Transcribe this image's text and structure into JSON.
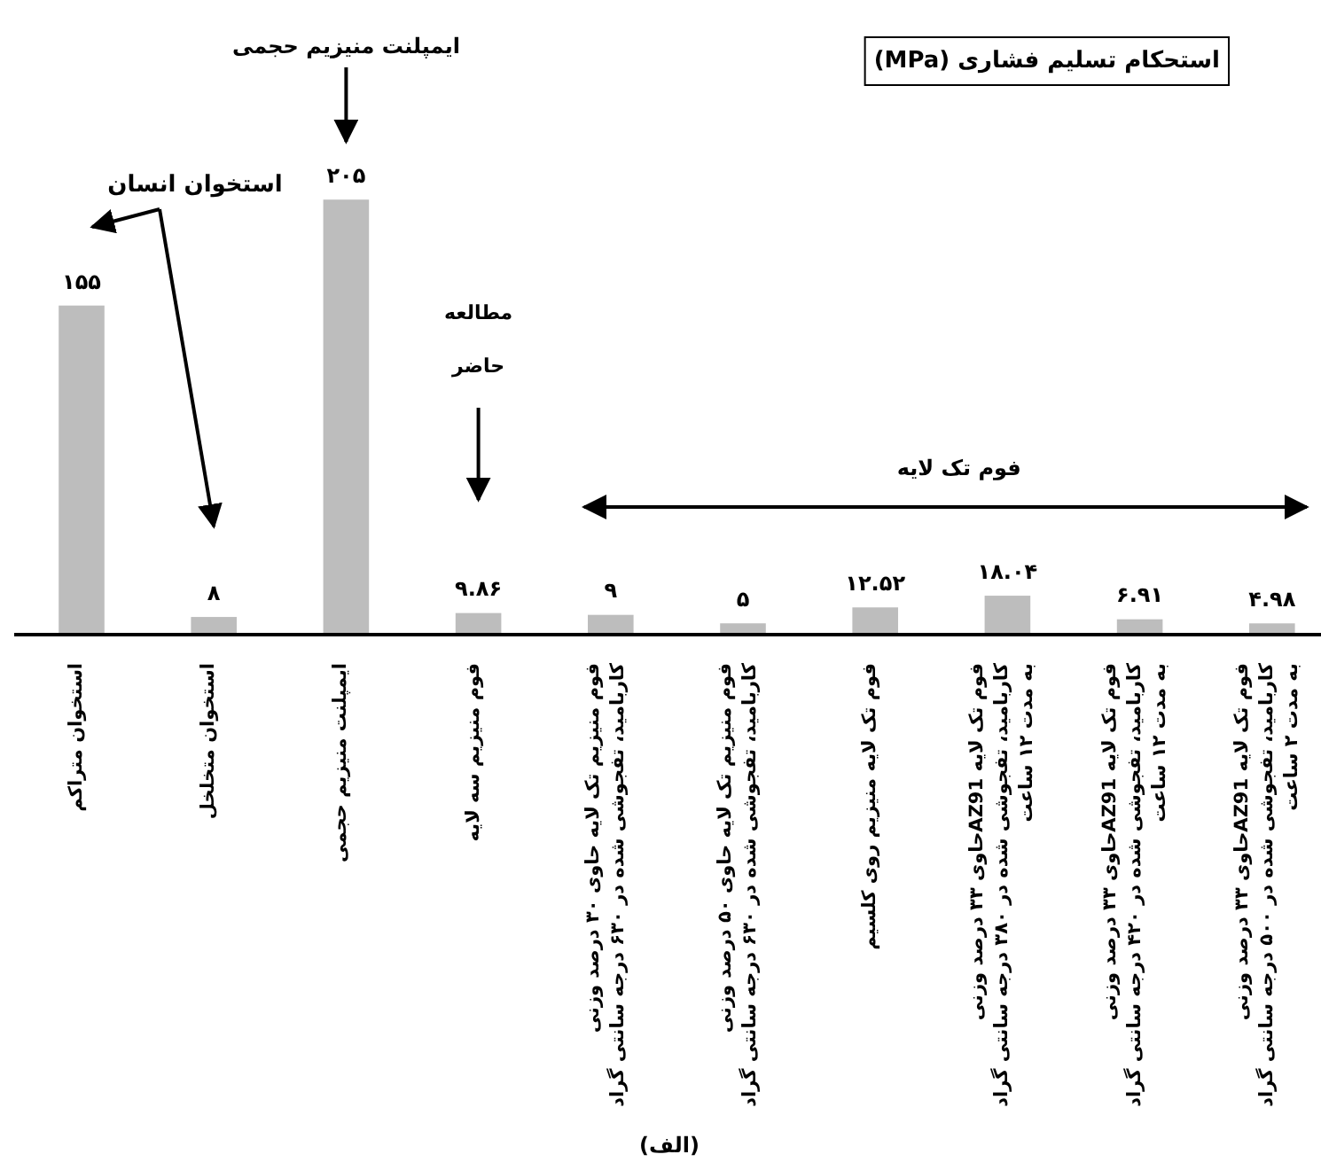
{
  "chart_data": {
    "type": "bar",
    "title": "استحکام تسلیم فشاری (MPa)",
    "categories": [
      "استخوان متراکم",
      "استخوان متخلخل",
      "ایمپلنت منیزیم حجمی",
      "فوم منیزیم سه لایه",
      "فوم منیزیم تک لایه حاوی ۳۰ درصد وزنی\nکاربامید، تفجوشی شده در ۶۳۰ درجه سانتی گراد",
      "فوم منیزیم تک لایه حاوی ۵۰ درصد وزنی\nکاربامید، تفجوشی شده در ۶۳۰ درجه سانتی گراد",
      "فوم تک لایه منیزیم  روی  کلسیم",
      "فوم تک لایه  AZ91حاوی ۳۳ درصد وزنی\nکاربامید، تفجوشی شده در ۳۸۰ درجه سانتی گراد\nبه مدت ۱۲ ساعت",
      "فوم تک لایه  AZ91حاوی ۳۳ درصد وزنی\nکاربامید، تفجوشی شده در ۴۲۰ درجه سانتی گراد\nبه مدت ۱۲ ساعت",
      "فوم تک لایه  AZ91حاوی ۳۳ درصد وزنی\nکاربامید، تفجوشی شده در ۵۰۰ درجه سانتی گراد\nبه مدت ۲ ساعت"
    ],
    "values": [
      155,
      8,
      205,
      9.86,
      9,
      5,
      12.52,
      18.04,
      6.91,
      4.98
    ],
    "value_labels": [
      "۱۵۵",
      "۸",
      "۲۰۵",
      "۹.۸۶",
      "۹",
      "۵",
      "۱۲.۵۲",
      "۱۸.۰۴",
      "۶.۹۱",
      "۴.۹۸"
    ],
    "color": "#bdbdbd",
    "annotations": [
      "ایمپلنت منیزیم حجمی",
      "استخوان انسان",
      "مطالعه\nحاضر",
      "فوم تک لایه",
      "(الف)"
    ],
    "grid": false
  }
}
